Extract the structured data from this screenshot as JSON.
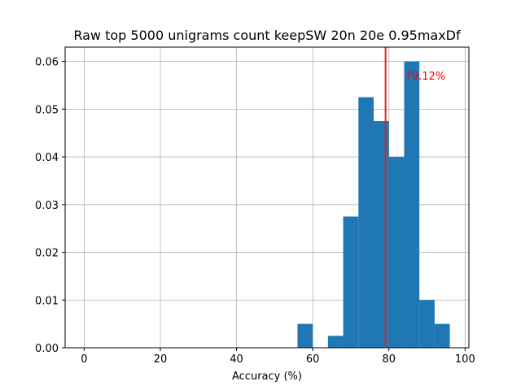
{
  "chart_data": {
    "type": "bar",
    "title": "Raw top 5000 unigrams count keepSW 20n 20e 0.95maxDf",
    "xlabel": "Accuracy (%)",
    "ylabel": "",
    "xlim": [
      -5,
      101
    ],
    "ylim": [
      0,
      0.063
    ],
    "grid": true,
    "bar_color": "#1f77b4",
    "bins": [
      {
        "x0": 56,
        "x1": 60,
        "density": 0.005
      },
      {
        "x0": 64,
        "x1": 68,
        "density": 0.0025
      },
      {
        "x0": 68,
        "x1": 72,
        "density": 0.0275
      },
      {
        "x0": 72,
        "x1": 76,
        "density": 0.0525
      },
      {
        "x0": 76,
        "x1": 80,
        "density": 0.0475
      },
      {
        "x0": 80,
        "x1": 84,
        "density": 0.04
      },
      {
        "x0": 84,
        "x1": 88,
        "density": 0.06
      },
      {
        "x0": 88,
        "x1": 92,
        "density": 0.01
      },
      {
        "x0": 92,
        "x1": 96,
        "density": 0.005
      }
    ],
    "xticks": [
      0,
      20,
      40,
      60,
      80,
      100
    ],
    "xtick_labels": [
      "0",
      "20",
      "40",
      "60",
      "80",
      "100"
    ],
    "yticks": [
      0,
      0.01,
      0.02,
      0.03,
      0.04,
      0.05,
      0.06
    ],
    "ytick_labels": [
      "0.00",
      "0.01",
      "0.02",
      "0.03",
      "0.04",
      "0.05",
      "0.06"
    ],
    "mean_line": {
      "x": 79.12,
      "color": "#d62728"
    },
    "annotation": {
      "text": "79.12%",
      "x": 79.12,
      "y": 0.057,
      "color": "#ff0000"
    }
  }
}
